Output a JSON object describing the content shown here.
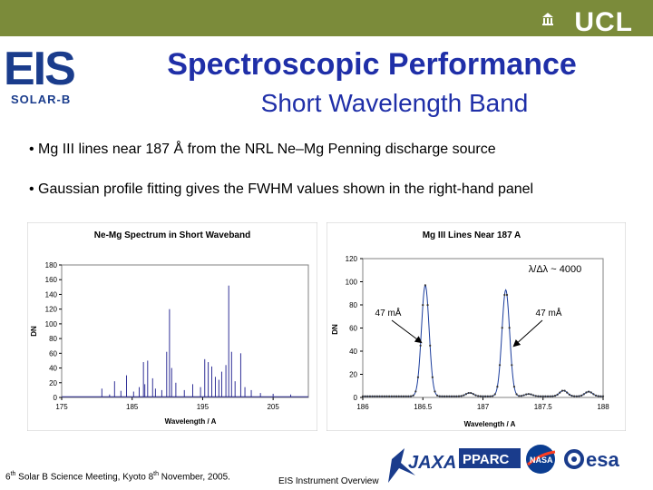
{
  "header": {
    "institution_logo": "UCL",
    "mission_logo_main": "EIS",
    "mission_logo_sub": "SOLAR-B"
  },
  "slide": {
    "title": "Spectroscopic Performance",
    "subtitle": "Short Wavelength Band",
    "bullets": [
      "• Mg III lines near 187 Å from the NRL Ne–Mg Penning discharge source",
      "• Gaussian profile fitting gives the FWHM values shown in the right-hand panel"
    ]
  },
  "footer": {
    "meeting_prefix": "6",
    "meeting_sup": "th",
    "meeting_mid": " Solar B Science Meeting, Kyoto 8",
    "meeting_sup2": "th",
    "meeting_suffix": " November, 2005.",
    "center": "EIS Instrument Overview"
  },
  "partner_logos": [
    "JAXA",
    "PPARC",
    "NASA",
    "esa"
  ],
  "chart_data": [
    {
      "type": "line",
      "title": "Ne-Mg Spectrum in Short Waveband",
      "xlabel": "Wavelength / A",
      "ylabel": "DN",
      "xlim": [
        175,
        210
      ],
      "ylim": [
        0,
        180
      ],
      "x_ticks": [
        "175",
        "185",
        "195",
        "205"
      ],
      "y_ticks": [
        "0",
        "20",
        "40",
        "60",
        "80",
        "100",
        "120",
        "140",
        "160",
        "180"
      ],
      "color": "#1a1a8c",
      "peaks": [
        {
          "x": 180.7,
          "y": 12
        },
        {
          "x": 181.8,
          "y": 4
        },
        {
          "x": 182.5,
          "y": 22
        },
        {
          "x": 183.4,
          "y": 9
        },
        {
          "x": 184.2,
          "y": 30
        },
        {
          "x": 185.2,
          "y": 8
        },
        {
          "x": 186.0,
          "y": 14
        },
        {
          "x": 186.6,
          "y": 48
        },
        {
          "x": 186.8,
          "y": 18
        },
        {
          "x": 187.2,
          "y": 50
        },
        {
          "x": 187.9,
          "y": 26
        },
        {
          "x": 188.3,
          "y": 12
        },
        {
          "x": 189.2,
          "y": 10
        },
        {
          "x": 189.9,
          "y": 62
        },
        {
          "x": 190.3,
          "y": 120
        },
        {
          "x": 190.6,
          "y": 40
        },
        {
          "x": 191.2,
          "y": 20
        },
        {
          "x": 192.4,
          "y": 10
        },
        {
          "x": 193.6,
          "y": 18
        },
        {
          "x": 194.7,
          "y": 14
        },
        {
          "x": 195.3,
          "y": 52
        },
        {
          "x": 195.8,
          "y": 48
        },
        {
          "x": 196.3,
          "y": 42
        },
        {
          "x": 196.8,
          "y": 28
        },
        {
          "x": 197.3,
          "y": 24
        },
        {
          "x": 197.7,
          "y": 35
        },
        {
          "x": 198.3,
          "y": 44
        },
        {
          "x": 198.7,
          "y": 152
        },
        {
          "x": 199.1,
          "y": 62
        },
        {
          "x": 199.6,
          "y": 22
        },
        {
          "x": 200.4,
          "y": 60
        },
        {
          "x": 201.0,
          "y": 14
        },
        {
          "x": 201.9,
          "y": 10
        },
        {
          "x": 203.2,
          "y": 6
        },
        {
          "x": 205.0,
          "y": 5
        },
        {
          "x": 207.5,
          "y": 4
        }
      ]
    },
    {
      "type": "line",
      "title": "Mg III Lines Near 187 A",
      "xlabel": "Wavelength / A",
      "ylabel": "DN",
      "xlim": [
        186,
        188
      ],
      "ylim": [
        0,
        120
      ],
      "x_ticks": [
        "186",
        "186.5",
        "187",
        "187.5",
        "188"
      ],
      "y_ticks": [
        "0",
        "20",
        "40",
        "60",
        "80",
        "100",
        "120"
      ],
      "color": "#1a3c9c",
      "lines": [
        {
          "center": 186.52,
          "amplitude": 96,
          "fwhm_label": "47 mÅ"
        },
        {
          "center": 187.19,
          "amplitude": 92,
          "fwhm_label": "47 mÅ"
        }
      ],
      "weak_features": [
        {
          "center": 186.89,
          "amplitude": 3
        },
        {
          "center": 187.38,
          "amplitude": 2
        },
        {
          "center": 187.67,
          "amplitude": 5
        },
        {
          "center": 187.88,
          "amplitude": 4
        }
      ],
      "annotations": {
        "resolving_power": "λ/Δλ ~ 4000",
        "left_label": "47 mÅ",
        "right_label": "47 mÅ"
      }
    }
  ]
}
